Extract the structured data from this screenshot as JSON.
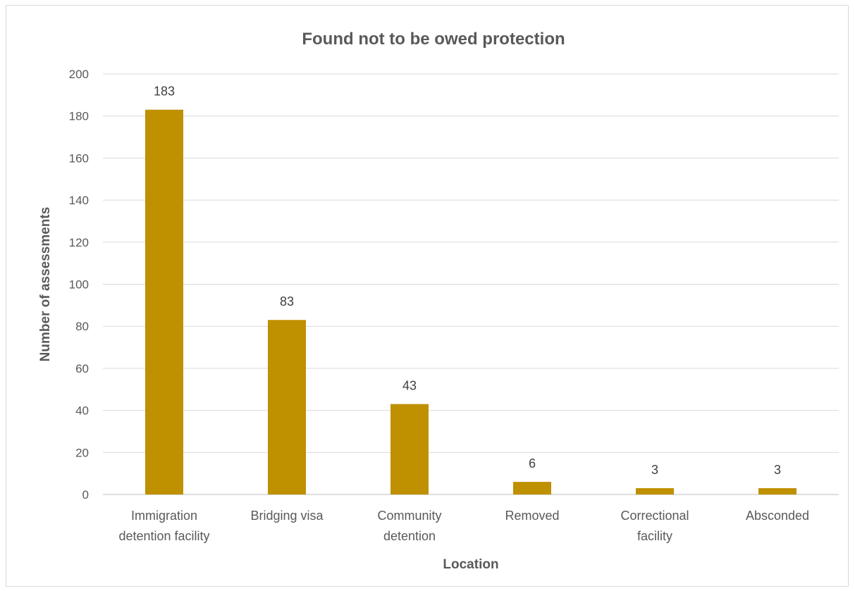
{
  "chart_data": {
    "type": "bar",
    "title": "Found not to be owed protection",
    "xlabel": "Location",
    "ylabel": "Number of assessments",
    "categories": [
      [
        "Immigration",
        "detention facility"
      ],
      [
        "Bridging visa"
      ],
      [
        "Community",
        "detention"
      ],
      [
        "Removed"
      ],
      [
        "Correctional",
        "facility"
      ],
      [
        "Absconded"
      ]
    ],
    "values": [
      183,
      83,
      43,
      6,
      3,
      3
    ],
    "ylim": [
      0,
      200
    ],
    "yticks": [
      0,
      20,
      40,
      60,
      80,
      100,
      120,
      140,
      160,
      180,
      200
    ],
    "grid": true,
    "legend": "none",
    "bar_color": "#bf9000",
    "data_labels": true
  }
}
